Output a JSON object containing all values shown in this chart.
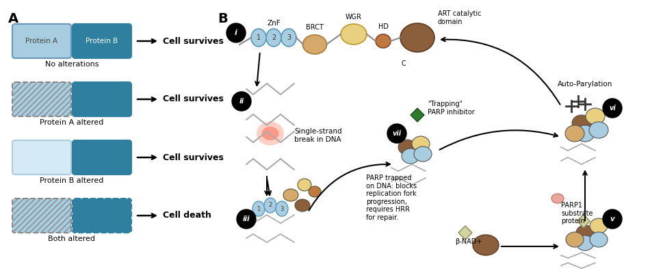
{
  "title_A": "A",
  "title_B": "B",
  "bg_color": "#ffffff",
  "light_blue": "#a8cce0",
  "dark_teal": "#2e7fa0",
  "medium_blue": "#5ba3c0",
  "hatch_color": "#5ba3c0",
  "dark_hatch": "#2e7fa0",
  "row1_label": "No alterations",
  "row2_label": "Protein A altered",
  "row3_label": "Protein B altered",
  "row4_label": "Both altered",
  "outcome1": "Cell survives",
  "outcome2": "Cell survives",
  "outcome3": "Cell survives",
  "outcome4": "Cell death",
  "znf_label": "ZnF",
  "brct_label": "BRCT",
  "wgr_label": "WGR",
  "hd_label": "HD",
  "art_label": "ART catalytic\ndomain",
  "c_label": "C",
  "step_i": "i",
  "step_ii": "ii",
  "step_iii": "iii",
  "step_v": "v",
  "step_vi": "vi",
  "step_vii": "vii",
  "ss_break_label": "Single-strand\nbreak in DNA",
  "trapping_label": "\"Trapping\"\nPARP inhibitor",
  "parp_trapped_label": "PARP trapped\non DNA: blocks\nreplication fork\nprogression,\nrequires HRR\nfor repair.",
  "auto_pary_label": "Auto-Parylation",
  "parp1_sub_label": "PARP1\nsubstrate\nprotein",
  "bnad_label": "β-NAD+"
}
